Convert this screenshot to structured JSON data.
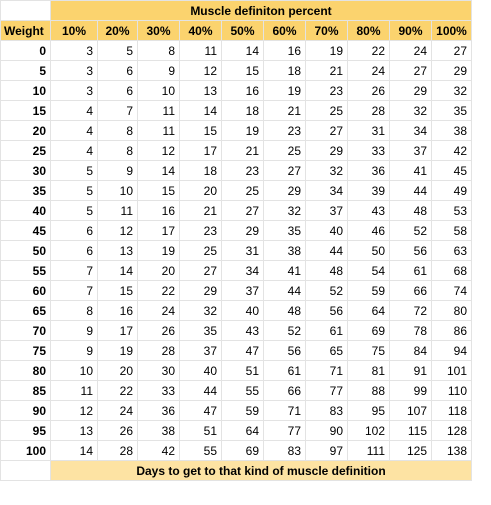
{
  "sheet": {
    "title": "Muscle definiton percent",
    "row_header_label": "Weight",
    "columns": [
      "10%",
      "20%",
      "30%",
      "40%",
      "50%",
      "60%",
      "70%",
      "80%",
      "90%",
      "100%"
    ],
    "rows": [
      {
        "weight": "0",
        "values": [
          "3",
          "5",
          "8",
          "11",
          "14",
          "16",
          "19",
          "22",
          "24",
          "27"
        ]
      },
      {
        "weight": "5",
        "values": [
          "3",
          "6",
          "9",
          "12",
          "15",
          "18",
          "21",
          "24",
          "27",
          "29"
        ]
      },
      {
        "weight": "10",
        "values": [
          "3",
          "6",
          "10",
          "13",
          "16",
          "19",
          "23",
          "26",
          "29",
          "32"
        ]
      },
      {
        "weight": "15",
        "values": [
          "4",
          "7",
          "11",
          "14",
          "18",
          "21",
          "25",
          "28",
          "32",
          "35"
        ]
      },
      {
        "weight": "20",
        "values": [
          "4",
          "8",
          "11",
          "15",
          "19",
          "23",
          "27",
          "31",
          "34",
          "38"
        ]
      },
      {
        "weight": "25",
        "values": [
          "4",
          "8",
          "12",
          "17",
          "21",
          "25",
          "29",
          "33",
          "37",
          "42"
        ]
      },
      {
        "weight": "30",
        "values": [
          "5",
          "9",
          "14",
          "18",
          "23",
          "27",
          "32",
          "36",
          "41",
          "45"
        ]
      },
      {
        "weight": "35",
        "values": [
          "5",
          "10",
          "15",
          "20",
          "25",
          "29",
          "34",
          "39",
          "44",
          "49"
        ]
      },
      {
        "weight": "40",
        "values": [
          "5",
          "11",
          "16",
          "21",
          "27",
          "32",
          "37",
          "43",
          "48",
          "53"
        ]
      },
      {
        "weight": "45",
        "values": [
          "6",
          "12",
          "17",
          "23",
          "29",
          "35",
          "40",
          "46",
          "52",
          "58"
        ]
      },
      {
        "weight": "50",
        "values": [
          "6",
          "13",
          "19",
          "25",
          "31",
          "38",
          "44",
          "50",
          "56",
          "63"
        ]
      },
      {
        "weight": "55",
        "values": [
          "7",
          "14",
          "20",
          "27",
          "34",
          "41",
          "48",
          "54",
          "61",
          "68"
        ]
      },
      {
        "weight": "60",
        "values": [
          "7",
          "15",
          "22",
          "29",
          "37",
          "44",
          "52",
          "59",
          "66",
          "74"
        ]
      },
      {
        "weight": "65",
        "values": [
          "8",
          "16",
          "24",
          "32",
          "40",
          "48",
          "56",
          "64",
          "72",
          "80"
        ]
      },
      {
        "weight": "70",
        "values": [
          "9",
          "17",
          "26",
          "35",
          "43",
          "52",
          "61",
          "69",
          "78",
          "86"
        ]
      },
      {
        "weight": "75",
        "values": [
          "9",
          "19",
          "28",
          "37",
          "47",
          "56",
          "65",
          "75",
          "84",
          "94"
        ]
      },
      {
        "weight": "80",
        "values": [
          "10",
          "20",
          "30",
          "40",
          "51",
          "61",
          "71",
          "81",
          "91",
          "101"
        ]
      },
      {
        "weight": "85",
        "values": [
          "11",
          "22",
          "33",
          "44",
          "55",
          "66",
          "77",
          "88",
          "99",
          "110"
        ]
      },
      {
        "weight": "90",
        "values": [
          "12",
          "24",
          "36",
          "47",
          "59",
          "71",
          "83",
          "95",
          "107",
          "118"
        ]
      },
      {
        "weight": "95",
        "values": [
          "13",
          "26",
          "38",
          "51",
          "64",
          "77",
          "90",
          "102",
          "115",
          "128"
        ]
      },
      {
        "weight": "100",
        "values": [
          "14",
          "28",
          "42",
          "55",
          "69",
          "83",
          "97",
          "111",
          "125",
          "138"
        ]
      }
    ],
    "footer": "Days to get to that kind of muscle definition"
  },
  "colors": {
    "header_fill": "#fbd36e",
    "footer_fill": "#fde3a3",
    "gridline": "#e3e3e3"
  }
}
